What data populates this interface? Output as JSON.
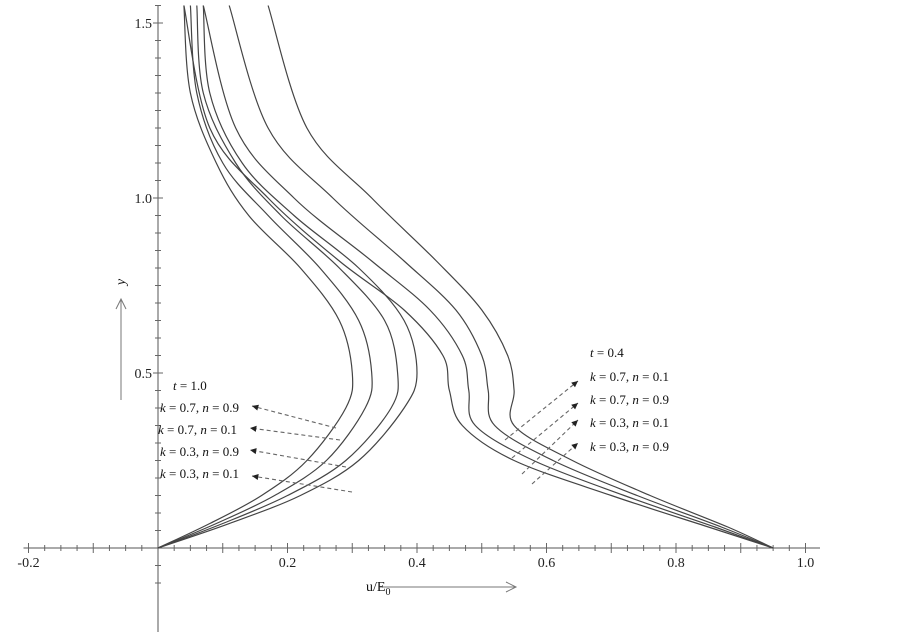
{
  "chart_data": {
    "type": "line",
    "xlabel": "u/E0",
    "xlabel_main": "u/E",
    "xlabel_sub": "0",
    "ylabel": "y",
    "xlim": [
      -0.2,
      1.0
    ],
    "ylim": [
      0,
      1.55
    ],
    "x_ticks": [
      -0.2,
      0.2,
      0.4,
      0.6,
      0.8,
      1.0
    ],
    "x_tick_labels": [
      "-0.2",
      "0.2",
      "0.4",
      "0.6",
      "0.8",
      "1.0"
    ],
    "y_ticks": [
      0.5,
      1.0,
      1.5
    ],
    "y_tick_labels": [
      "0.5",
      "1.0",
      "1.5"
    ],
    "grid": false,
    "group_t10": {
      "title_var": "t",
      "title_val": "= 1.0",
      "entries": [
        {
          "k": "= 0.7, ",
          "n": "= 0.9"
        },
        {
          "k": "= 0.7, ",
          "n": "= 0.1"
        },
        {
          "k": "= 0.3, ",
          "n": "= 0.9"
        },
        {
          "k": "= 0.3, ",
          "n": "= 0.1"
        }
      ]
    },
    "group_t04": {
      "title_var": "t",
      "title_val": "= 0.4",
      "entries": [
        {
          "k": "= 0.7, ",
          "n": "= 0.1"
        },
        {
          "k": "= 0.7, ",
          "n": "= 0.9"
        },
        {
          "k": "= 0.3, ",
          "n": "= 0.1"
        },
        {
          "k": "= 0.3, ",
          "n": "= 0.9"
        }
      ]
    },
    "series": [
      {
        "group": "t=1.0",
        "points": [
          [
            0,
            0
          ],
          [
            0.08,
            0.07
          ],
          [
            0.16,
            0.15
          ],
          [
            0.23,
            0.25
          ],
          [
            0.29,
            0.4
          ],
          [
            0.3,
            0.5
          ],
          [
            0.28,
            0.65
          ],
          [
            0.22,
            0.8
          ],
          [
            0.14,
            0.95
          ],
          [
            0.09,
            1.1
          ],
          [
            0.05,
            1.3
          ],
          [
            0.04,
            1.55
          ]
        ]
      },
      {
        "group": "t=1.0",
        "points": [
          [
            0,
            0
          ],
          [
            0.09,
            0.07
          ],
          [
            0.18,
            0.15
          ],
          [
            0.26,
            0.25
          ],
          [
            0.32,
            0.4
          ],
          [
            0.33,
            0.5
          ],
          [
            0.31,
            0.65
          ],
          [
            0.25,
            0.8
          ],
          [
            0.17,
            0.95
          ],
          [
            0.1,
            1.1
          ],
          [
            0.06,
            1.3
          ],
          [
            0.05,
            1.55
          ]
        ]
      },
      {
        "group": "t=1.0",
        "points": [
          [
            0,
            0
          ],
          [
            0.1,
            0.07
          ],
          [
            0.2,
            0.15
          ],
          [
            0.29,
            0.25
          ],
          [
            0.36,
            0.4
          ],
          [
            0.37,
            0.5
          ],
          [
            0.35,
            0.65
          ],
          [
            0.28,
            0.8
          ],
          [
            0.19,
            0.95
          ],
          [
            0.12,
            1.1
          ],
          [
            0.07,
            1.3
          ],
          [
            0.06,
            1.55
          ]
        ]
      },
      {
        "group": "t=1.0",
        "points": [
          [
            0,
            0
          ],
          [
            0.11,
            0.07
          ],
          [
            0.22,
            0.15
          ],
          [
            0.31,
            0.25
          ],
          [
            0.38,
            0.4
          ],
          [
            0.4,
            0.5
          ],
          [
            0.38,
            0.65
          ],
          [
            0.31,
            0.8
          ],
          [
            0.21,
            0.95
          ],
          [
            0.13,
            1.1
          ],
          [
            0.08,
            1.3
          ],
          [
            0.07,
            1.55
          ]
        ]
      },
      {
        "group": "t=0.4",
        "points": [
          [
            0.95,
            0
          ],
          [
            0.85,
            0.06
          ],
          [
            0.7,
            0.15
          ],
          [
            0.55,
            0.25
          ],
          [
            0.47,
            0.35
          ],
          [
            0.45,
            0.45
          ],
          [
            0.44,
            0.55
          ],
          [
            0.38,
            0.68
          ],
          [
            0.28,
            0.82
          ],
          [
            0.17,
            1.0
          ],
          [
            0.08,
            1.2
          ],
          [
            0.04,
            1.55
          ]
        ]
      },
      {
        "group": "t=0.4",
        "points": [
          [
            0.95,
            0
          ],
          [
            0.86,
            0.06
          ],
          [
            0.72,
            0.15
          ],
          [
            0.58,
            0.25
          ],
          [
            0.49,
            0.35
          ],
          [
            0.48,
            0.45
          ],
          [
            0.47,
            0.55
          ],
          [
            0.42,
            0.68
          ],
          [
            0.33,
            0.82
          ],
          [
            0.21,
            1.0
          ],
          [
            0.12,
            1.2
          ],
          [
            0.07,
            1.55
          ]
        ]
      },
      {
        "group": "t=0.4",
        "points": [
          [
            0.95,
            0
          ],
          [
            0.87,
            0.06
          ],
          [
            0.74,
            0.15
          ],
          [
            0.61,
            0.25
          ],
          [
            0.52,
            0.35
          ],
          [
            0.51,
            0.45
          ],
          [
            0.5,
            0.55
          ],
          [
            0.46,
            0.68
          ],
          [
            0.38,
            0.82
          ],
          [
            0.27,
            1.0
          ],
          [
            0.17,
            1.2
          ],
          [
            0.11,
            1.55
          ]
        ]
      },
      {
        "group": "t=0.4",
        "points": [
          [
            0.95,
            0
          ],
          [
            0.88,
            0.06
          ],
          [
            0.76,
            0.15
          ],
          [
            0.64,
            0.25
          ],
          [
            0.55,
            0.35
          ],
          [
            0.55,
            0.45
          ],
          [
            0.54,
            0.55
          ],
          [
            0.5,
            0.68
          ],
          [
            0.43,
            0.82
          ],
          [
            0.33,
            1.0
          ],
          [
            0.23,
            1.2
          ],
          [
            0.17,
            1.55
          ]
        ]
      }
    ]
  }
}
